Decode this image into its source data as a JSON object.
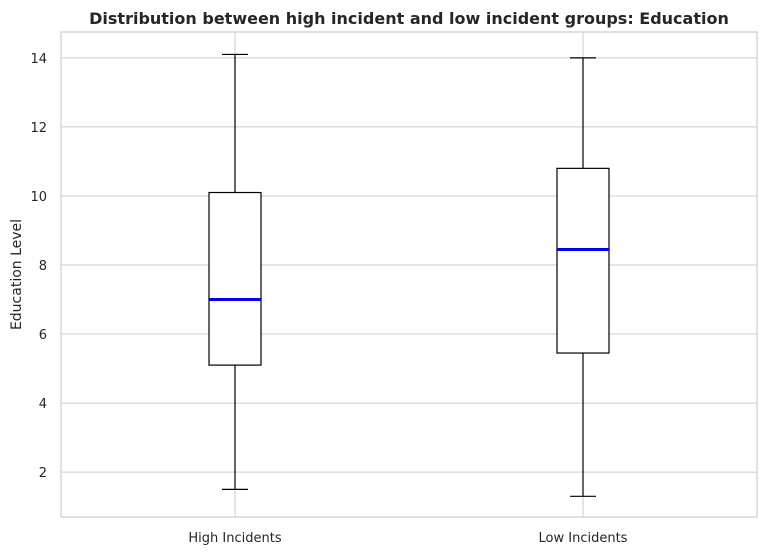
{
  "chart_data": {
    "type": "box",
    "title": "Distribution between high incident and low incident groups: Education",
    "xlabel": "",
    "ylabel": "Education Level",
    "ylim": [
      0.7,
      14.75
    ],
    "yticks": [
      2,
      4,
      6,
      8,
      10,
      12,
      14
    ],
    "grid": true,
    "median_color": "#0000ee",
    "series": [
      {
        "name": "High Incidents",
        "min": 1.5,
        "q1": 5.1,
        "median": 7.0,
        "q3": 10.1,
        "max": 14.1
      },
      {
        "name": "Low Incidents",
        "min": 1.3,
        "q1": 5.45,
        "median": 8.45,
        "q3": 10.8,
        "max": 14.0
      }
    ]
  }
}
